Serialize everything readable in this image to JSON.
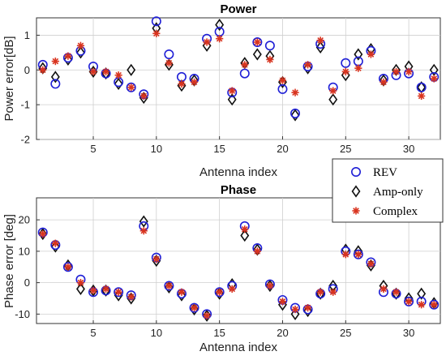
{
  "chart_data": [
    {
      "type": "scatter",
      "title": "Power",
      "xlabel": "Antenna index",
      "ylabel": "Power error[dB]",
      "xlim": [
        0.5,
        32.5
      ],
      "ylim": [
        -2,
        1.5
      ],
      "xticks": [
        5,
        10,
        15,
        20,
        25,
        30
      ],
      "yticks": [
        -2,
        -1,
        0,
        1
      ],
      "grid": true,
      "x": [
        1,
        2,
        3,
        4,
        5,
        6,
        7,
        8,
        9,
        10,
        11,
        12,
        13,
        14,
        15,
        16,
        17,
        18,
        19,
        20,
        21,
        22,
        23,
        24,
        25,
        26,
        27,
        28,
        29,
        30,
        31,
        32
      ],
      "series": [
        {
          "name": "REV",
          "marker": "circle",
          "color": "#1f1fd6",
          "values": [
            0.15,
            -0.4,
            0.35,
            0.55,
            0.1,
            -0.1,
            -0.35,
            -0.5,
            -0.7,
            1.4,
            0.45,
            -0.2,
            -0.25,
            0.9,
            1.1,
            -0.65,
            -0.1,
            0.8,
            0.7,
            -0.55,
            -1.25,
            0.1,
            0.75,
            -0.5,
            0.2,
            0.25,
            0.55,
            -0.25,
            -0.15,
            -0.1,
            -0.5,
            -0.2
          ]
        },
        {
          "name": "Amp-only",
          "marker": "diamond",
          "color": "#111111",
          "values": [
            0.05,
            -0.2,
            0.3,
            0.5,
            -0.05,
            -0.1,
            -0.4,
            0.0,
            -0.8,
            1.2,
            0.15,
            -0.45,
            -0.3,
            0.7,
            1.3,
            -0.85,
            0.2,
            0.45,
            0.4,
            -0.35,
            -1.3,
            0.05,
            0.65,
            -0.85,
            -0.15,
            0.45,
            0.6,
            -0.3,
            0.0,
            0.1,
            -0.5,
            0.0
          ]
        },
        {
          "name": "Complex",
          "marker": "asterisk",
          "color": "#d9341f",
          "values": [
            0.0,
            0.25,
            0.4,
            0.7,
            -0.05,
            -0.05,
            -0.15,
            -0.5,
            -0.75,
            1.05,
            0.2,
            -0.4,
            -0.35,
            0.8,
            0.9,
            -0.6,
            0.15,
            0.8,
            0.3,
            -0.3,
            -0.65,
            0.15,
            0.85,
            -0.6,
            -0.05,
            0.05,
            0.45,
            -0.35,
            -0.05,
            -0.05,
            -0.75,
            -0.25
          ]
        }
      ]
    },
    {
      "type": "scatter",
      "title": "Phase",
      "xlabel": "Antenna index",
      "ylabel": "Phase error [deg]",
      "xlim": [
        0.5,
        32.5
      ],
      "ylim": [
        -13,
        27
      ],
      "xticks": [
        5,
        10,
        15,
        20,
        25,
        30
      ],
      "yticks": [
        -10,
        0,
        10,
        20
      ],
      "grid": true,
      "x": [
        1,
        2,
        3,
        4,
        5,
        6,
        7,
        8,
        9,
        10,
        11,
        12,
        13,
        14,
        15,
        16,
        17,
        18,
        19,
        20,
        21,
        22,
        23,
        24,
        25,
        26,
        27,
        28,
        29,
        30,
        31,
        32
      ],
      "series": [
        {
          "name": "REV",
          "marker": "circle",
          "color": "#1f1fd6",
          "values": [
            16,
            12,
            5,
            1,
            -3,
            -2.5,
            -3,
            -4,
            18,
            8,
            -1,
            -3.5,
            -8,
            -10,
            -3,
            -1,
            18,
            11,
            -0.5,
            -5.5,
            -8,
            -8.5,
            -3.5,
            -2,
            10,
            9,
            6.5,
            -3,
            -3.5,
            -6,
            -6,
            -7
          ]
        },
        {
          "name": "Amp-only",
          "marker": "diamond",
          "color": "#111111",
          "values": [
            15.5,
            11.5,
            5.5,
            -2,
            -2.5,
            -2.5,
            -4,
            -5,
            19.5,
            7,
            -1.5,
            -4,
            -8.5,
            -10.5,
            -3.5,
            -0.5,
            15,
            10.5,
            -1,
            -7,
            -10,
            -9,
            -3.5,
            -1,
            10.5,
            10,
            5.5,
            -1,
            -3.5,
            -5,
            -3.5,
            -6.5
          ]
        },
        {
          "name": "Complex",
          "marker": "asterisk",
          "color": "#d9341f",
          "values": [
            15.5,
            12.5,
            5,
            0,
            -2.5,
            -2,
            -3,
            -4.5,
            16.5,
            7.5,
            -1,
            -3,
            -8,
            -10.5,
            -3,
            -2,
            17,
            10,
            -1,
            -6,
            -8.5,
            -8,
            -3,
            -3,
            9,
            9,
            6,
            -2,
            -3,
            -6,
            -7,
            -7
          ]
        }
      ]
    }
  ],
  "legend": {
    "position": "between panels, right",
    "items": [
      {
        "label": "REV",
        "marker": "circle",
        "color": "#1f1fd6"
      },
      {
        "label": "Amp-only",
        "marker": "diamond",
        "color": "#111111"
      },
      {
        "label": "Complex",
        "marker": "asterisk",
        "color": "#d9341f"
      }
    ]
  }
}
